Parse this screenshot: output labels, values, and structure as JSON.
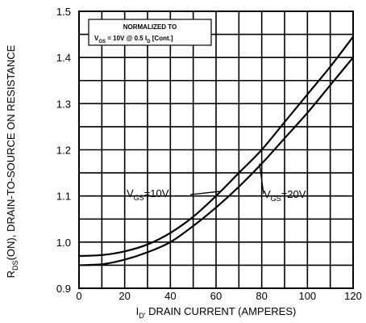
{
  "chart_data": {
    "type": "line",
    "xlabel_parts": {
      "base": "I",
      "sub": "D'",
      "rest": " DRAIN CURRENT (AMPERES)"
    },
    "ylabel_parts": {
      "base": "R",
      "sub": "DS",
      "rest": "(ON), DRAIN-TO-SOURCE ON RESISTANCE"
    },
    "xlim": [
      0,
      120
    ],
    "ylim": [
      0.9,
      1.5
    ],
    "x_ticks": [
      "0",
      "20",
      "40",
      "60",
      "80",
      "100",
      "120"
    ],
    "y_ticks": [
      "0.9",
      "1.0",
      "1.1",
      "1.2",
      "1.3",
      "1.4",
      "1.5"
    ],
    "x_minor_step": 10,
    "y_minor_step": 0.05,
    "grid": true,
    "annotation_box": {
      "line1": "NORMALIZED TO",
      "line2_parts": [
        "V",
        "GS",
        " = 10V  @  0.5  I",
        "D",
        " [Cont.]"
      ]
    },
    "series": [
      {
        "label_parts": [
          "V",
          "GS",
          "=10V"
        ],
        "color": "#000000",
        "points": [
          [
            0,
            0.97
          ],
          [
            10,
            0.972
          ],
          [
            20,
            0.98
          ],
          [
            30,
            0.995
          ],
          [
            40,
            1.02
          ],
          [
            50,
            1.055
          ],
          [
            60,
            1.1
          ],
          [
            70,
            1.15
          ],
          [
            80,
            1.2
          ],
          [
            90,
            1.26
          ],
          [
            100,
            1.32
          ],
          [
            110,
            1.38
          ],
          [
            120,
            1.445
          ]
        ]
      },
      {
        "label_parts": [
          "V",
          "GS",
          "=20V"
        ],
        "color": "#000000",
        "points": [
          [
            0,
            0.95
          ],
          [
            10,
            0.952
          ],
          [
            20,
            0.962
          ],
          [
            30,
            0.978
          ],
          [
            40,
            1.0
          ],
          [
            50,
            1.035
          ],
          [
            60,
            1.075
          ],
          [
            70,
            1.12
          ],
          [
            80,
            1.17
          ],
          [
            90,
            1.225
          ],
          [
            100,
            1.28
          ],
          [
            110,
            1.34
          ],
          [
            120,
            1.4
          ]
        ]
      }
    ]
  }
}
